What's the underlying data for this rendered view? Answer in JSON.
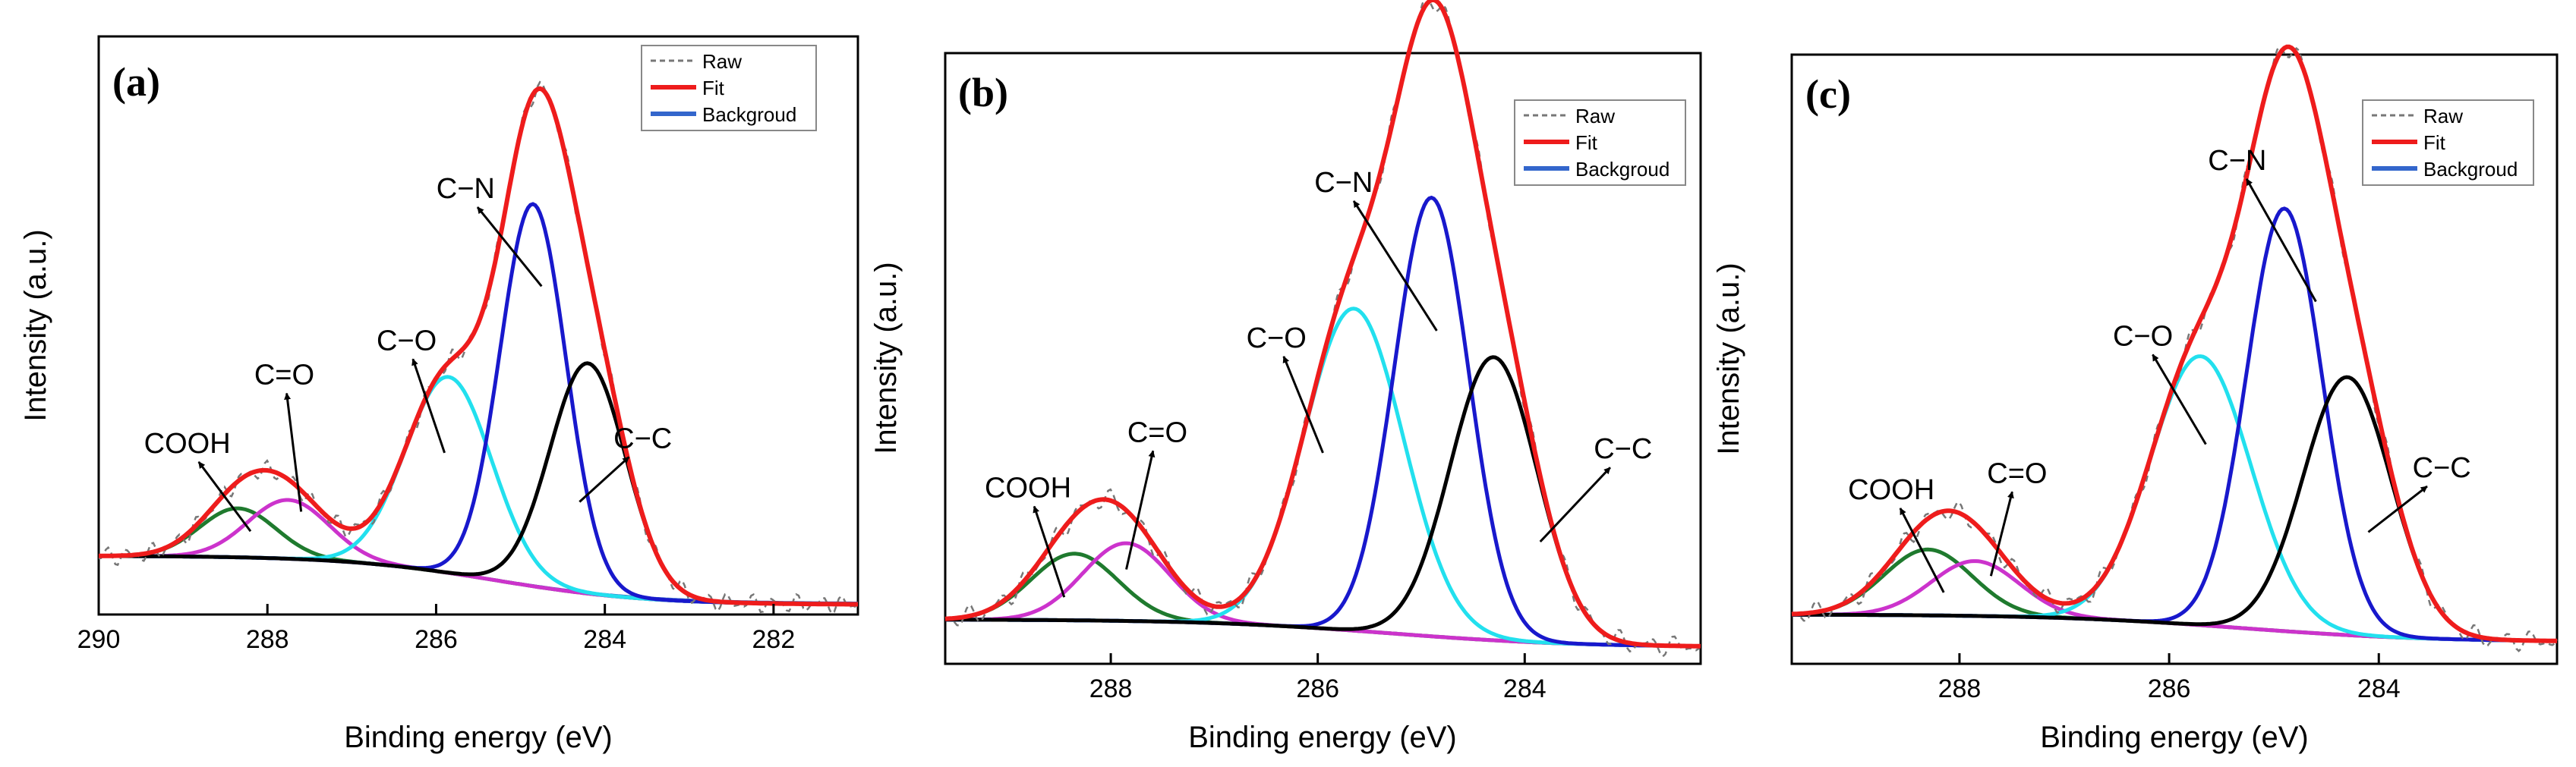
{
  "figure": {
    "series_order": [
      "bg",
      "COOH",
      "C=O",
      "C-O",
      "C-N",
      "C-C",
      "raw",
      "fit"
    ]
  },
  "chart_data": [
    {
      "type": "line",
      "panel_label": "(a)",
      "xlabel": "Binding energy (eV)",
      "ylabel": "Intensity (a.u.)",
      "xlim": [
        290,
        281
      ],
      "ylim": [
        -0.12,
        1.06
      ],
      "xticks": [
        290,
        288,
        286,
        284,
        282
      ],
      "tick_labels": [
        "290",
        "288",
        "286",
        "284",
        "282"
      ],
      "legend": {
        "position": "top-right",
        "entries": [
          "Raw",
          "Fit",
          "Backgroud"
        ]
      },
      "background": {
        "x0": 289.9,
        "x1": 281.0,
        "y_high": 0.0,
        "y_low": -0.1,
        "mid": 285.3,
        "width": 0.9
      },
      "components": [
        {
          "name": "COOH",
          "center": 288.35,
          "height": 0.1,
          "width": 0.75,
          "color": "#1f7a2e"
        },
        {
          "name": "C=O",
          "center": 287.75,
          "height": 0.12,
          "width": 0.8,
          "color": "#cc33cc"
        },
        {
          "name": "C-O",
          "center": 285.85,
          "height": 0.4,
          "width": 0.85,
          "color": "#22e0ee"
        },
        {
          "name": "C-N",
          "center": 284.85,
          "height": 0.78,
          "width": 0.65,
          "color": "#1818cc"
        },
        {
          "name": "C-C",
          "center": 284.2,
          "height": 0.47,
          "width": 0.75,
          "color": "#000000"
        }
      ],
      "raw_color": "#777777",
      "fit_color": "#ee1c1c",
      "background_color": "#3366cc",
      "annotations": [
        {
          "text": "COOH",
          "x_text": 288.95,
          "y_text": 0.21,
          "x_arrow": 288.2,
          "y_arrow": 0.05
        },
        {
          "text": "C=O",
          "x_text": 287.8,
          "y_text": 0.35,
          "x_arrow": 287.6,
          "y_arrow": 0.09
        },
        {
          "text": "C−O",
          "x_text": 286.35,
          "y_text": 0.42,
          "x_arrow": 285.9,
          "y_arrow": 0.21
        },
        {
          "text": "C−N",
          "x_text": 285.65,
          "y_text": 0.73,
          "x_arrow": 284.75,
          "y_arrow": 0.55
        },
        {
          "text": "C−C",
          "x_text": 283.55,
          "y_text": 0.22,
          "x_arrow": 284.3,
          "y_arrow": 0.11
        }
      ]
    },
    {
      "type": "line",
      "panel_label": "(b)",
      "xlabel": "Binding energy (eV)",
      "ylabel": "Intensity (a.u.)",
      "xlim": [
        289.6,
        282.3
      ],
      "ylim": [
        -0.08,
        1.02
      ],
      "xticks": [
        288,
        286,
        284
      ],
      "tick_labels": [
        "288",
        "286",
        "284"
      ],
      "legend": {
        "position": "top-right",
        "entries": [
          "Raw",
          "Fit",
          "Backgroud"
        ]
      },
      "background": {
        "x0": 289.6,
        "x1": 282.3,
        "y_high": 0.0,
        "y_low": -0.05,
        "mid": 285.3,
        "width": 0.9
      },
      "components": [
        {
          "name": "COOH",
          "center": 288.35,
          "height": 0.12,
          "width": 0.7,
          "color": "#1f7a2e"
        },
        {
          "name": "C=O",
          "center": 287.85,
          "height": 0.14,
          "width": 0.7,
          "color": "#cc33cc"
        },
        {
          "name": "C-O",
          "center": 285.65,
          "height": 0.58,
          "width": 0.8,
          "color": "#22e0ee"
        },
        {
          "name": "C-N",
          "center": 284.9,
          "height": 0.79,
          "width": 0.6,
          "color": "#1818cc"
        },
        {
          "name": "C-C",
          "center": 284.3,
          "height": 0.51,
          "width": 0.7,
          "color": "#000000"
        }
      ],
      "raw_color": "#777777",
      "fit_color": "#ee1c1c",
      "background_color": "#3366cc",
      "annotations": [
        {
          "text": "COOH",
          "x_text": 288.8,
          "y_text": 0.22,
          "x_arrow": 288.45,
          "y_arrow": 0.04
        },
        {
          "text": "C=O",
          "x_text": 287.55,
          "y_text": 0.32,
          "x_arrow": 287.85,
          "y_arrow": 0.09
        },
        {
          "text": "C−O",
          "x_text": 286.4,
          "y_text": 0.49,
          "x_arrow": 285.95,
          "y_arrow": 0.3
        },
        {
          "text": "C−N",
          "x_text": 285.75,
          "y_text": 0.77,
          "x_arrow": 284.85,
          "y_arrow": 0.52
        },
        {
          "text": "C−C",
          "x_text": 283.05,
          "y_text": 0.29,
          "x_arrow": 283.85,
          "y_arrow": 0.14
        }
      ]
    },
    {
      "type": "line",
      "panel_label": "(c)",
      "xlabel": "Binding energy (eV)",
      "ylabel": "Intensity (a.u.)",
      "xlim": [
        289.6,
        282.3
      ],
      "ylim": [
        -0.09,
        1.02
      ],
      "xticks": [
        288,
        286,
        284
      ],
      "tick_labels": [
        "288",
        "286",
        "284"
      ],
      "legend": {
        "position": "top-right",
        "entries": [
          "Raw",
          "Fit",
          "Backgroud"
        ]
      },
      "background": {
        "x0": 289.6,
        "x1": 282.3,
        "y_high": 0.0,
        "y_low": -0.05,
        "mid": 285.3,
        "width": 0.9
      },
      "components": [
        {
          "name": "COOH",
          "center": 288.3,
          "height": 0.12,
          "width": 0.7,
          "color": "#1f7a2e"
        },
        {
          "name": "C=O",
          "center": 287.85,
          "height": 0.1,
          "width": 0.7,
          "color": "#cc33cc"
        },
        {
          "name": "C-O",
          "center": 285.7,
          "height": 0.49,
          "width": 0.8,
          "color": "#22e0ee"
        },
        {
          "name": "C-N",
          "center": 284.9,
          "height": 0.77,
          "width": 0.6,
          "color": "#1818cc"
        },
        {
          "name": "C-C",
          "center": 284.3,
          "height": 0.47,
          "width": 0.7,
          "color": "#000000"
        }
      ],
      "raw_color": "#777777",
      "fit_color": "#ee1c1c",
      "background_color": "#3366cc",
      "annotations": [
        {
          "text": "COOH",
          "x_text": 288.65,
          "y_text": 0.21,
          "x_arrow": 288.15,
          "y_arrow": 0.04
        },
        {
          "text": "C=O",
          "x_text": 287.45,
          "y_text": 0.24,
          "x_arrow": 287.7,
          "y_arrow": 0.07
        },
        {
          "text": "C−O",
          "x_text": 286.25,
          "y_text": 0.49,
          "x_arrow": 285.65,
          "y_arrow": 0.31
        },
        {
          "text": "C−N",
          "x_text": 285.35,
          "y_text": 0.81,
          "x_arrow": 284.6,
          "y_arrow": 0.57
        },
        {
          "text": "C−C",
          "x_text": 283.4,
          "y_text": 0.25,
          "x_arrow": 284.1,
          "y_arrow": 0.15
        }
      ]
    }
  ]
}
